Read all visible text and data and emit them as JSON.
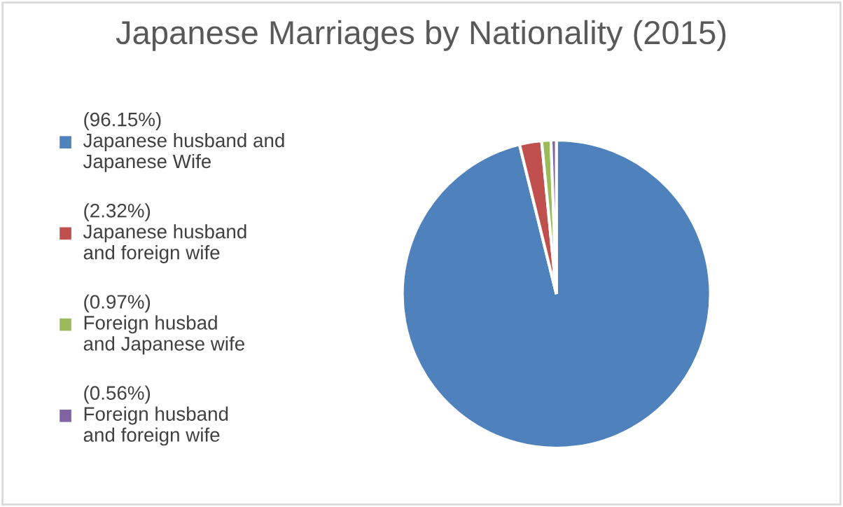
{
  "chart_data": {
    "type": "pie",
    "title": "Japanese Marriages by Nationality (2015)",
    "categories": [
      "(96.15%)\nJapanese husband and\nJapanese Wife",
      "(2.32%)\nJapanese husband\nand foreign wife",
      "(0.97%)\nForeign husbad\nand Japanese wife",
      "(0.56%)\nForeign husband\nand foreign wife"
    ],
    "values": [
      96.15,
      2.32,
      0.97,
      0.56
    ],
    "colors": [
      "#4f81bd",
      "#c0504d",
      "#9bbb59",
      "#8064a2"
    ],
    "legend": "left"
  }
}
